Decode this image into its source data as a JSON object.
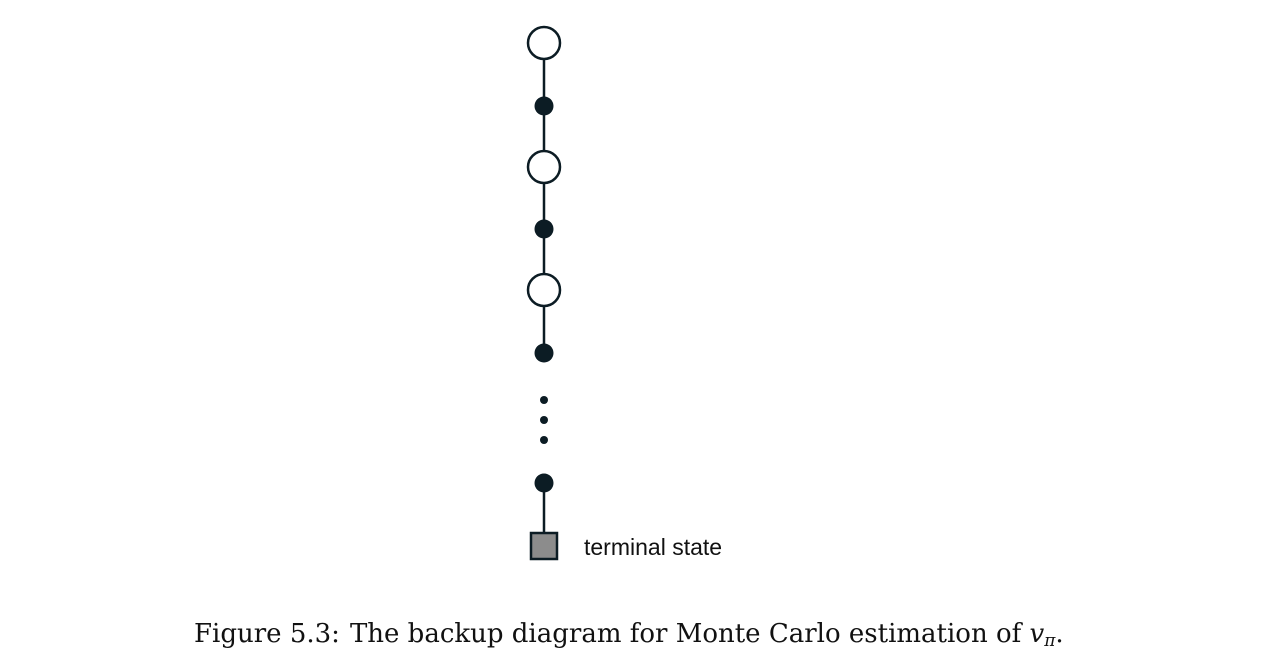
{
  "diagram": {
    "terminal_label": "terminal state",
    "colors": {
      "line": "#0c1c24",
      "action_fill": "#0c1c24",
      "state_fill": "#ffffff",
      "terminal_fill": "#8c8c8c"
    }
  },
  "caption": {
    "figure_label": "Figure 5.3:",
    "text": "The backup diagram for Monte Carlo estimation of",
    "math_symbol": "v",
    "math_subscript": "π",
    "trailing": "."
  }
}
